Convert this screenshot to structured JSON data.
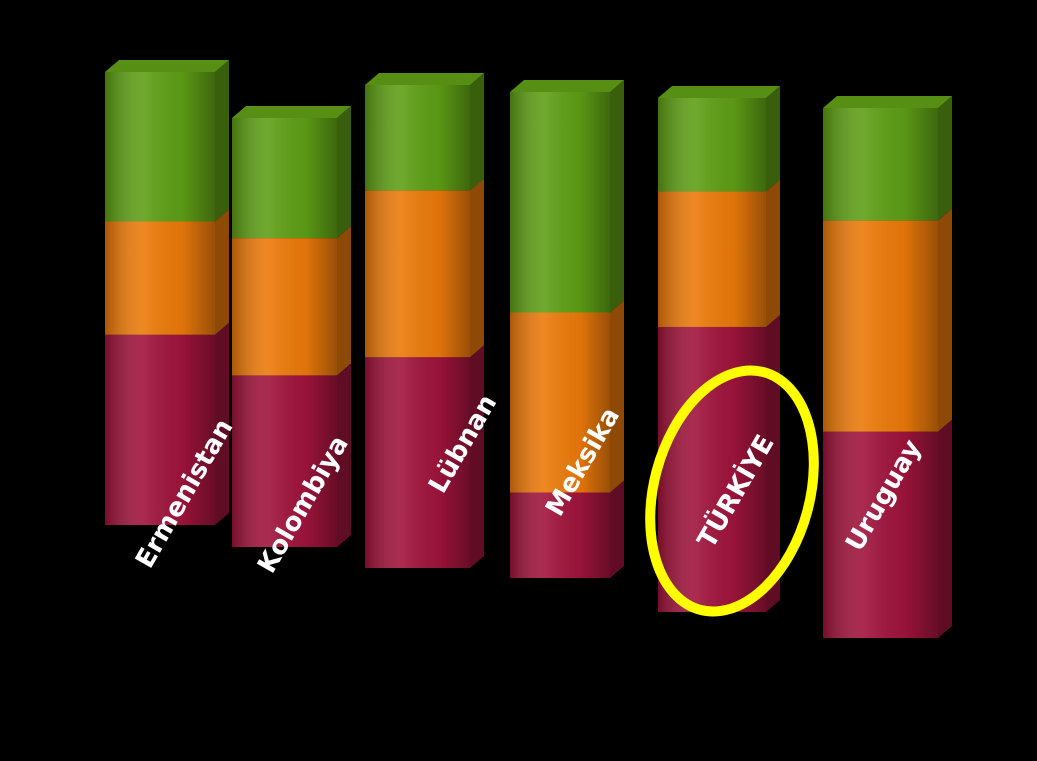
{
  "chart_data": {
    "type": "bar",
    "stacked": true,
    "categories": [
      "Ermenistan",
      "Kolombiya",
      "Lübnan",
      "Meksika",
      "TÜRKİYE",
      "Uruguay"
    ],
    "series": [
      {
        "color": "#a0143c",
        "values": [
          42,
          40,
          48,
          19,
          61,
          44
        ]
      },
      {
        "color": "#ec7a0a",
        "values": [
          25,
          32,
          38,
          40,
          29,
          45
        ]
      },
      {
        "color": "#5f9f16",
        "values": [
          33,
          28,
          24,
          49,
          20,
          24
        ]
      }
    ],
    "highlight": {
      "category": "TÜRKİYE",
      "color": "#ffff00"
    },
    "grid": false,
    "legend": "none"
  }
}
